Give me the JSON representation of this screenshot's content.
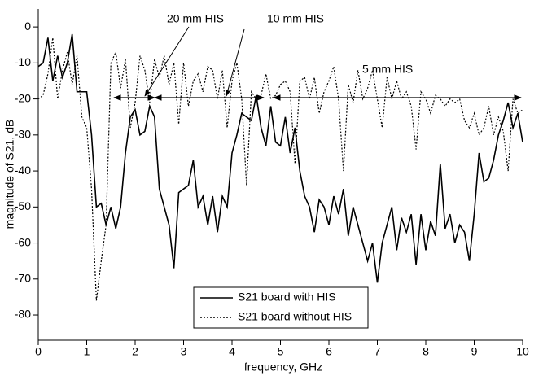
{
  "chart_data": {
    "type": "line",
    "xlabel": "frequency, GHz",
    "ylabel": "magnitude of S21, dB",
    "x": [
      0,
      0.1,
      0.2,
      0.3,
      0.4,
      0.5,
      0.6,
      0.7,
      0.8,
      0.9,
      1,
      1.1,
      1.2,
      1.3,
      1.4,
      1.5,
      1.6,
      1.7,
      1.8,
      1.9,
      2,
      2.1,
      2.2,
      2.3,
      2.4,
      2.5,
      2.6,
      2.7,
      2.8,
      2.9,
      3,
      3.1,
      3.2,
      3.3,
      3.4,
      3.5,
      3.6,
      3.7,
      3.8,
      3.9,
      4,
      4.1,
      4.2,
      4.3,
      4.4,
      4.5,
      4.6,
      4.7,
      4.8,
      4.9,
      5,
      5.1,
      5.2,
      5.3,
      5.4,
      5.5,
      5.6,
      5.7,
      5.8,
      5.9,
      6,
      6.1,
      6.2,
      6.3,
      6.4,
      6.5,
      6.6,
      6.7,
      6.8,
      6.9,
      7,
      7.1,
      7.2,
      7.3,
      7.4,
      7.5,
      7.6,
      7.7,
      7.8,
      7.9,
      8,
      8.1,
      8.2,
      8.3,
      8.4,
      8.5,
      8.6,
      8.7,
      8.8,
      8.9,
      9,
      9.1,
      9.2,
      9.3,
      9.4,
      9.5,
      9.6,
      9.7,
      9.8,
      9.9,
      10
    ],
    "series": [
      {
        "name": "S21 board with HIS",
        "color": "#000000",
        "linestyle": "solid",
        "values": [
          -11,
          -10,
          -3,
          -15,
          -8,
          -14,
          -10,
          -2,
          -18,
          -18,
          -18,
          -30,
          -50,
          -49,
          -55,
          -50,
          -56,
          -50,
          -35,
          -25,
          -23,
          -30,
          -29,
          -22,
          -25,
          -45,
          -50,
          -55,
          -67,
          -46,
          -45,
          -44,
          -37,
          -50,
          -47,
          -55,
          -47,
          -57,
          -47,
          -50,
          -35,
          -30,
          -24,
          -25,
          -26,
          -19,
          -28,
          -33,
          -22,
          -32,
          -33,
          -25,
          -35,
          -28,
          -40,
          -47,
          -50,
          -57,
          -48,
          -50,
          -55,
          -47,
          -52,
          -45,
          -58,
          -50,
          -55,
          -60,
          -65,
          -60,
          -71,
          -60,
          -55,
          -50,
          -62,
          -53,
          -57,
          -52,
          -66,
          -52,
          -62,
          -54,
          -58,
          -38,
          -56,
          -52,
          -60,
          -55,
          -57,
          -65,
          -52,
          -35,
          -43,
          -42,
          -37,
          -30,
          -26,
          -21,
          -28,
          -24,
          -32
        ]
      },
      {
        "name": "S21 board without HIS",
        "color": "#000000",
        "linestyle": "dotted",
        "values": [
          -20,
          -19,
          -13,
          -3,
          -20,
          -12,
          -7,
          -16,
          -8,
          -25,
          -28,
          -45,
          -76,
          -65,
          -55,
          -10,
          -7,
          -17,
          -9,
          -28,
          -21,
          -8,
          -12,
          -21,
          -9,
          -14,
          -8,
          -16,
          -10,
          -27,
          -10,
          -22,
          -15,
          -13,
          -18,
          -11,
          -12,
          -20,
          -12,
          -28,
          -15,
          -10,
          -20,
          -44,
          -18,
          -20,
          -19,
          -13,
          -20,
          -19,
          -16,
          -15,
          -18,
          -38,
          -15,
          -14,
          -20,
          -14,
          -24,
          -18,
          -15,
          -11,
          -20,
          -40,
          -16,
          -21,
          -12,
          -20,
          -17,
          -12,
          -20,
          -28,
          -14,
          -20,
          -15,
          -20,
          -18,
          -22,
          -34,
          -18,
          -20,
          -24,
          -19,
          -20,
          -22,
          -20,
          -21,
          -20,
          -26,
          -28,
          -24,
          -30,
          -28,
          -22,
          -30,
          -25,
          -29,
          -40,
          -20,
          -24,
          -23
        ]
      }
    ],
    "annotations": [
      "20 mm HIS",
      "10 mm HIS",
      "5 mm HIS"
    ],
    "xlim": [
      0,
      10
    ],
    "xticks": [
      0,
      1,
      2,
      3,
      4,
      5,
      6,
      7,
      8,
      9,
      10
    ],
    "ylim": [
      -87,
      5
    ],
    "yticks": [
      0,
      -10,
      -20,
      -30,
      -40,
      -50,
      -60,
      -70,
      -80
    ],
    "grid": false
  }
}
